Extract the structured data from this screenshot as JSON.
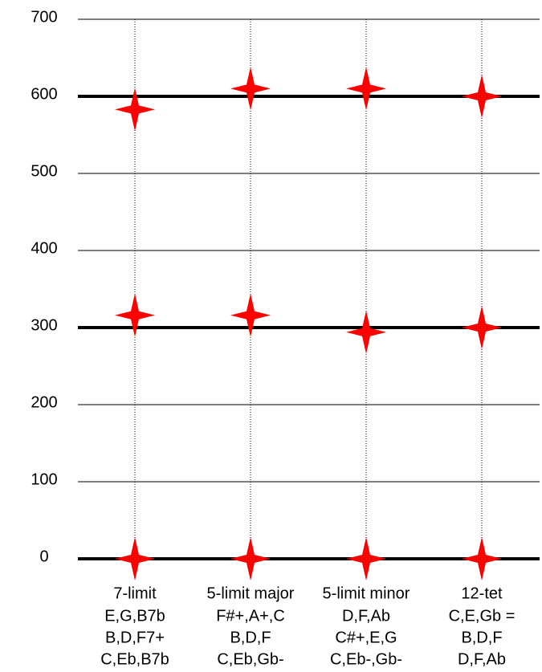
{
  "chart_data": {
    "type": "scatter",
    "categories": [
      "7-limit",
      "5-limit major",
      "5-limit minor",
      "12-tet"
    ],
    "chords": [
      [
        "E,G,B7b",
        "B,D,F7+",
        "C,Eb,B7b"
      ],
      [
        "F#+,A+,C",
        "B,D,F",
        "C,Eb,Gb-"
      ],
      [
        "D,F,Ab",
        "C#+,E,G",
        "C,Eb-,Gb-"
      ],
      [
        "C,E,Gb =",
        "B,D,F",
        "D,F,Ab"
      ]
    ],
    "series": [
      {
        "values": [
          0,
          0,
          0,
          0
        ]
      },
      {
        "values": [
          316,
          316,
          294,
          300
        ]
      },
      {
        "values": [
          583,
          610,
          610,
          600
        ]
      }
    ],
    "color": "#ff0000",
    "ylim": [
      0,
      700
    ],
    "yticks": [
      0,
      100,
      200,
      300,
      400,
      500,
      600,
      700
    ],
    "major_yticks": [
      0,
      300,
      600
    ],
    "grid": true
  }
}
